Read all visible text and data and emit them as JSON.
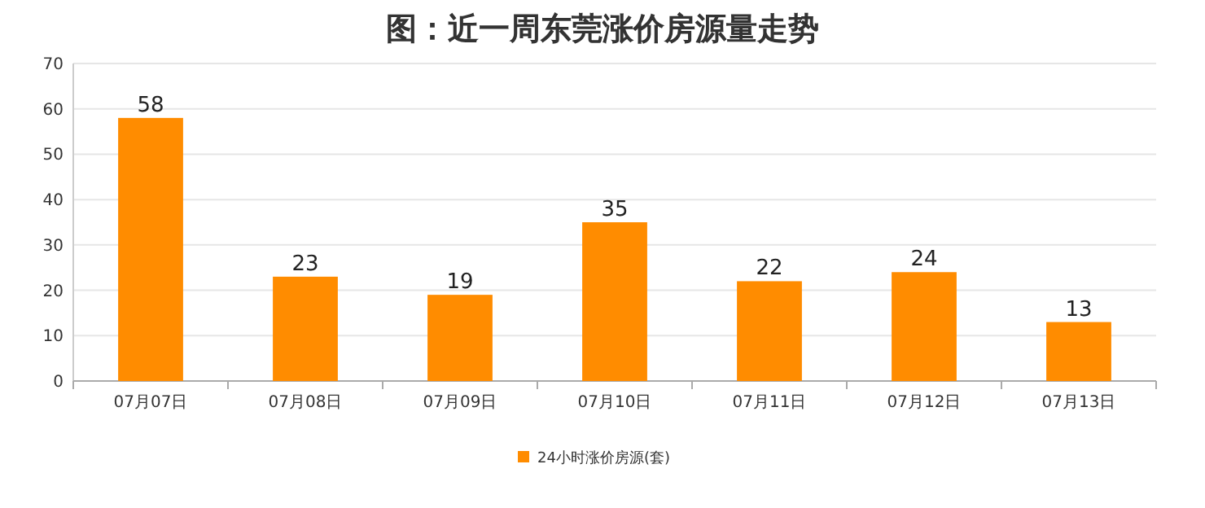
{
  "chart_data": {
    "type": "bar",
    "title": "图：近一周东莞涨价房源量走势",
    "categories": [
      "07月07日",
      "07月08日",
      "07月09日",
      "07月10日",
      "07月11日",
      "07月12日",
      "07月13日"
    ],
    "series": [
      {
        "name": "24小时涨价房源(套)",
        "color": "#ff8c00",
        "values": [
          58,
          23,
          19,
          35,
          22,
          24,
          13
        ]
      }
    ],
    "ylim": [
      0,
      70
    ],
    "yticks": [
      0,
      10,
      20,
      30,
      40,
      50,
      60,
      70
    ],
    "grid": "y",
    "legend": "bottom",
    "data_labels": true
  }
}
